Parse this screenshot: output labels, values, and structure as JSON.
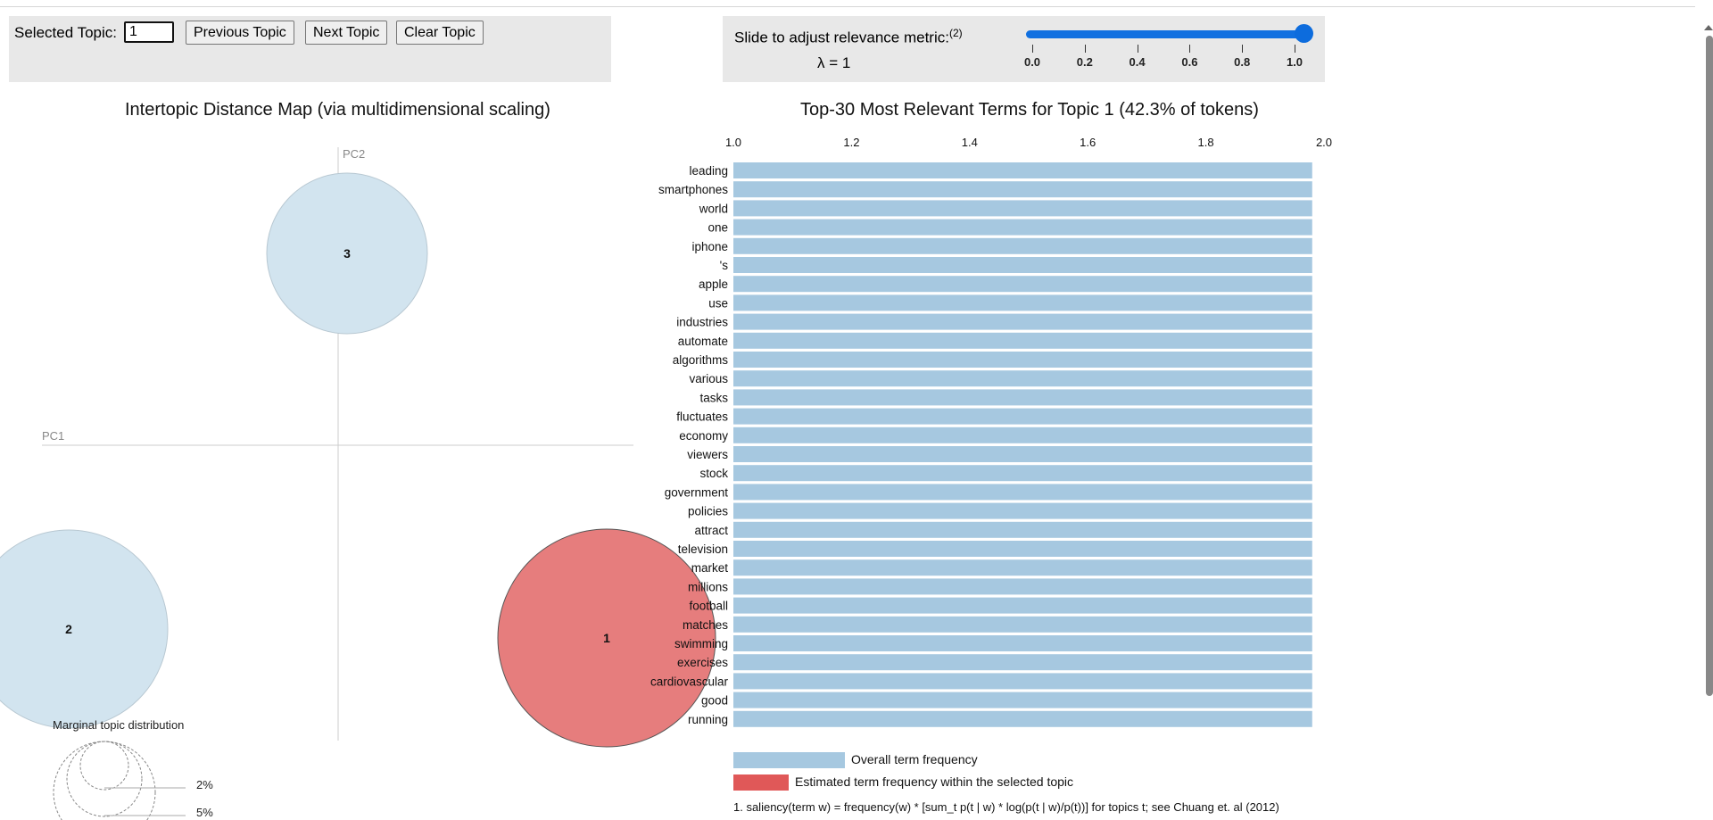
{
  "controls": {
    "selected_topic_label": "Selected Topic:",
    "selected_topic_value": "1",
    "previous_label": "Previous Topic",
    "next_label": "Next Topic",
    "clear_label": "Clear Topic"
  },
  "lambda": {
    "label": "Slide to adjust relevance metric:",
    "footnote_ref": "(2)",
    "value_text": "λ = 1",
    "value": 1.0,
    "ticks": [
      "0.0",
      "0.2",
      "0.4",
      "0.6",
      "0.8",
      "1.0"
    ]
  },
  "map": {
    "title": "Intertopic Distance Map (via multidimensional scaling)",
    "pc1_label": "PC1",
    "pc2_label": "PC2",
    "topics": [
      {
        "id": "1",
        "selected": true
      },
      {
        "id": "2",
        "selected": false
      },
      {
        "id": "3",
        "selected": false
      }
    ],
    "marginal": {
      "title": "Marginal topic distribution",
      "levels": [
        "2%",
        "5%"
      ]
    }
  },
  "chart_data": {
    "type": "bar",
    "orientation": "horizontal",
    "title": "Top-30 Most Relevant Terms for Topic 1 (42.3% of tokens)",
    "xlim": [
      1.0,
      2.0
    ],
    "x_ticks": [
      "1.0",
      "1.2",
      "1.4",
      "1.6",
      "1.8",
      "2.0"
    ],
    "categories": [
      "leading",
      "smartphones",
      "world",
      "one",
      "iphone",
      "'s",
      "apple",
      "use",
      "industries",
      "automate",
      "algorithms",
      "various",
      "tasks",
      "fluctuates",
      "economy",
      "viewers",
      "stock",
      "government",
      "policies",
      "attract",
      "television",
      "market",
      "millions",
      "football",
      "matches",
      "swimming",
      "exercises",
      "cardiovascular",
      "good",
      "running"
    ],
    "series": [
      {
        "name": "Overall term frequency",
        "values": [
          1.98,
          1.98,
          1.98,
          1.98,
          1.98,
          1.98,
          1.98,
          1.98,
          1.98,
          1.98,
          1.98,
          1.98,
          1.98,
          1.98,
          1.98,
          1.98,
          1.98,
          1.98,
          1.98,
          1.98,
          1.98,
          1.98,
          1.98,
          1.98,
          1.98,
          1.98,
          1.98,
          1.98,
          1.98,
          1.98
        ]
      }
    ],
    "legend": {
      "overall": "Overall term frequency",
      "estimated": "Estimated term frequency within the selected topic"
    },
    "colors": {
      "overall": "#a6c8e0",
      "estimated": "#e05858",
      "selected_topic": "#e67d7d",
      "other_topic": "#d2e4ef"
    }
  },
  "footnote": "1. saliency(term w) = frequency(w) * [sum_t p(t | w) * log(p(t | w)/p(t))] for topics t; see Chuang et. al (2012)"
}
